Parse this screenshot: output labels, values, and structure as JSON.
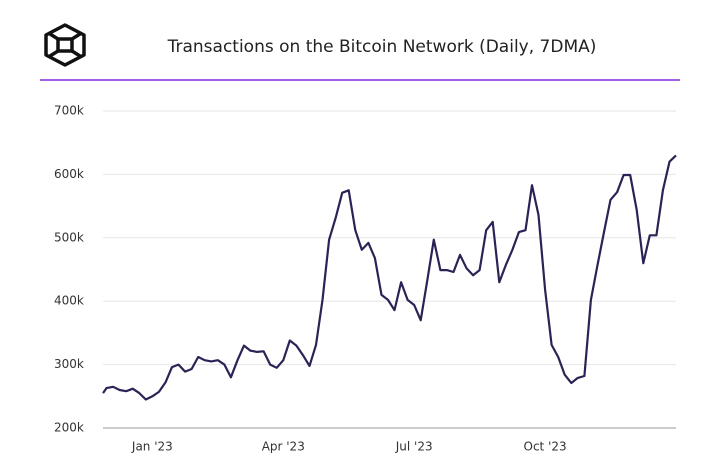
{
  "chart_data": {
    "type": "line",
    "title": "Transactions on the Bitcoin Network (Daily, 7DMA)",
    "categories": [
      null,
      null,
      null,
      null,
      null,
      null,
      null,
      null,
      "Jan '23",
      null,
      null,
      null,
      null,
      null,
      null,
      null,
      null,
      null,
      null,
      null,
      null,
      null,
      null,
      null,
      null,
      null,
      null,
      null,
      "Apr '23",
      null,
      null,
      null,
      null,
      null,
      null,
      null,
      null,
      null,
      null,
      null,
      null,
      null,
      null,
      null,
      null,
      null,
      null,
      null,
      "Jul '23",
      null,
      null,
      null,
      null,
      null,
      null,
      null,
      null,
      null,
      null,
      null,
      null,
      null,
      null,
      null,
      null,
      null,
      null,
      null,
      "Oct '23",
      null,
      null,
      null,
      null,
      null,
      null,
      null,
      null,
      null,
      null,
      null,
      null,
      null,
      null,
      null,
      null,
      null,
      null,
      null,
      null
    ],
    "series": [
      {
        "name": "Transactions",
        "color": "#2b2355",
        "values": [
          255000,
          263000,
          265000,
          260000,
          258000,
          262000,
          255000,
          245000,
          250000,
          257000,
          272000,
          296000,
          300000,
          289000,
          293000,
          312000,
          307000,
          305000,
          307000,
          300000,
          280000,
          307000,
          330000,
          322000,
          320000,
          321000,
          300000,
          295000,
          307000,
          338000,
          330000,
          315000,
          298000,
          331000,
          402000,
          497000,
          531000,
          571000,
          575000,
          512000,
          481000,
          492000,
          468000,
          410000,
          402000,
          386000,
          430000,
          402000,
          394000,
          370000,
          433000,
          497000,
          449000,
          449000,
          446000,
          473000,
          452000,
          441000,
          449000,
          512000,
          525000,
          430000,
          457000,
          481000,
          509000,
          512000,
          583000,
          536000,
          418000,
          331000,
          312000,
          284000,
          271000,
          279000,
          282000,
          402000,
          457000,
          509000,
          560000,
          572000,
          599000,
          599000,
          544000,
          460000,
          504000,
          504000,
          575000,
          620000,
          630000
        ]
      }
    ],
    "ylim": [
      200000,
      700000
    ],
    "yticks": [
      {
        "value": 200000,
        "label": "200k"
      },
      {
        "value": 300000,
        "label": "300k"
      },
      {
        "value": 400000,
        "label": "400k"
      },
      {
        "value": 500000,
        "label": "500k"
      },
      {
        "value": 600000,
        "label": "600k"
      },
      {
        "value": 700000,
        "label": "700k"
      }
    ],
    "grid": true
  }
}
